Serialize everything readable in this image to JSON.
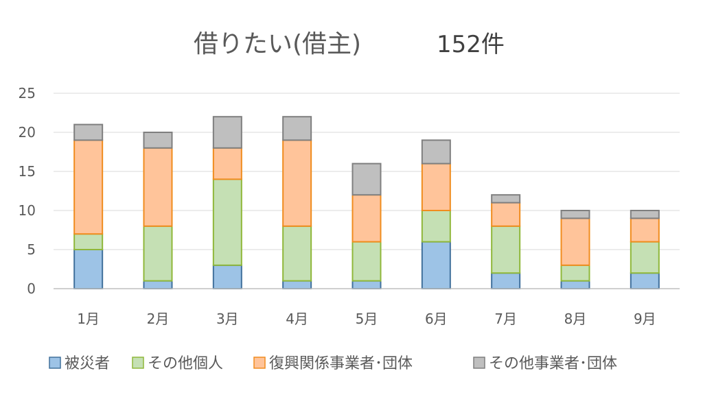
{
  "chart_data": {
    "type": "bar",
    "stacked": true,
    "title": "借りたい(借主)",
    "total_label": "152件",
    "categories": [
      "1月",
      "2月",
      "3月",
      "4月",
      "5月",
      "6月",
      "7月",
      "8月",
      "9月"
    ],
    "ylim": [
      0,
      25
    ],
    "yticks": [
      0,
      5,
      10,
      15,
      20,
      25
    ],
    "grid": true,
    "legend_position": "bottom",
    "series": [
      {
        "name": "被災者",
        "values": [
          5,
          1,
          3,
          1,
          1,
          6,
          2,
          1,
          2
        ],
        "fill": "#9dc3e6",
        "stroke": "#41719c"
      },
      {
        "name": "その他個人",
        "values": [
          2,
          7,
          11,
          7,
          5,
          4,
          6,
          2,
          4
        ],
        "fill": "#c5e0b4",
        "stroke": "#8fb73a"
      },
      {
        "name": "復興関係事業者･団体",
        "values": [
          12,
          10,
          4,
          11,
          6,
          6,
          3,
          6,
          3
        ],
        "fill": "#ffc49a",
        "stroke": "#f08c1e"
      },
      {
        "name": "その他事業者･団体",
        "values": [
          2,
          2,
          4,
          3,
          4,
          3,
          1,
          1,
          1
        ],
        "fill": "#bfbfbf",
        "stroke": "#7f7f7f"
      }
    ]
  }
}
